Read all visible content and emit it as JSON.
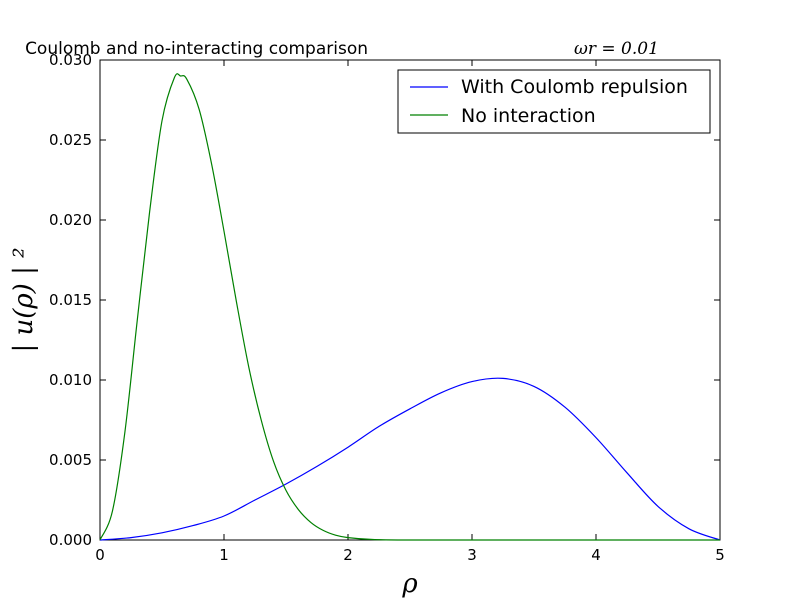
{
  "chart_data": {
    "type": "line",
    "title": "Coulomb and no-interacting comparison",
    "title_math": "ωr = 0.01",
    "xlabel": "ρ",
    "ylabel": "| u(ρ) | ²",
    "xlim": [
      0,
      5
    ],
    "ylim": [
      0,
      0.03
    ],
    "x_ticks": [
      "0",
      "1",
      "2",
      "3",
      "4",
      "5"
    ],
    "y_ticks": [
      "0.000",
      "0.005",
      "0.010",
      "0.015",
      "0.020",
      "0.025",
      "0.030"
    ],
    "grid": false,
    "legend_position": "top-right",
    "series": [
      {
        "name": "With Coulomb repulsion",
        "color": "#0000ff",
        "x": [
          0,
          0.25,
          0.5,
          0.75,
          1.0,
          1.25,
          1.5,
          1.75,
          2.0,
          2.25,
          2.5,
          2.75,
          3.0,
          3.25,
          3.5,
          3.75,
          4.0,
          4.25,
          4.5,
          4.75,
          5.0
        ],
        "y": [
          0.0,
          0.00015,
          0.00045,
          0.0009,
          0.0015,
          0.0025,
          0.0035,
          0.0046,
          0.0058,
          0.0071,
          0.0082,
          0.0092,
          0.0099,
          0.0101,
          0.0096,
          0.0083,
          0.0064,
          0.0042,
          0.0021,
          0.0007,
          0.0
        ]
      },
      {
        "name": "No interaction",
        "color": "#008000",
        "x": [
          0,
          0.1,
          0.2,
          0.3,
          0.4,
          0.5,
          0.6,
          0.65,
          0.7,
          0.8,
          0.9,
          1.0,
          1.1,
          1.2,
          1.3,
          1.4,
          1.5,
          1.6,
          1.7,
          1.8,
          1.9,
          2.0,
          2.2,
          2.5,
          3.0,
          4.0,
          5.0
        ],
        "y": [
          0.0,
          0.0018,
          0.0067,
          0.0137,
          0.0205,
          0.0262,
          0.0289,
          0.029,
          0.0288,
          0.0269,
          0.0235,
          0.0193,
          0.0149,
          0.0108,
          0.0075,
          0.0049,
          0.0031,
          0.0019,
          0.0011,
          0.0006,
          0.0003,
          0.00015,
          3e-05,
          0.0,
          0.0,
          0.0,
          0.0
        ]
      }
    ]
  }
}
